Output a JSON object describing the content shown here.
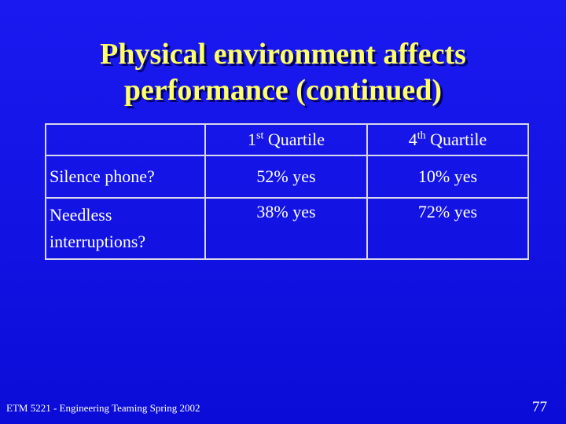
{
  "header": {
    "title_lines": [
      "Physical environment affects",
      "performance (continued)"
    ]
  },
  "table": {
    "columns": [
      {
        "number": "1",
        "suffix": "st",
        "label": "Quartile"
      },
      {
        "number": "4",
        "suffix": "th",
        "label": "Quartile"
      }
    ],
    "rows": [
      [
        "Silence phone?",
        "52% yes",
        "10% yes"
      ],
      [
        "Needless interruptions?",
        "38% yes",
        "72% yes"
      ]
    ]
  },
  "footer": {
    "course": "ETM 5221 - Engineering Teaming Spring 2002",
    "page": "77"
  }
}
